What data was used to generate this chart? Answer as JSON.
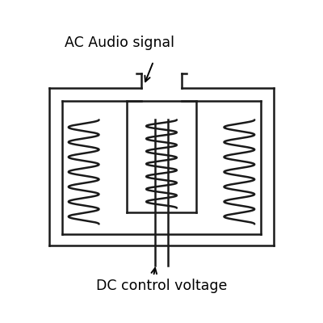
{
  "bg_color": "#ffffff",
  "line_color": "#1a1a1a",
  "line_width": 1.8,
  "fig_width": 4.0,
  "fig_height": 4.0,
  "label_ac": "AC Audio signal",
  "label_dc": "DC control voltage",
  "label_fontsize": 12.5,
  "coil_lw": 1.8
}
